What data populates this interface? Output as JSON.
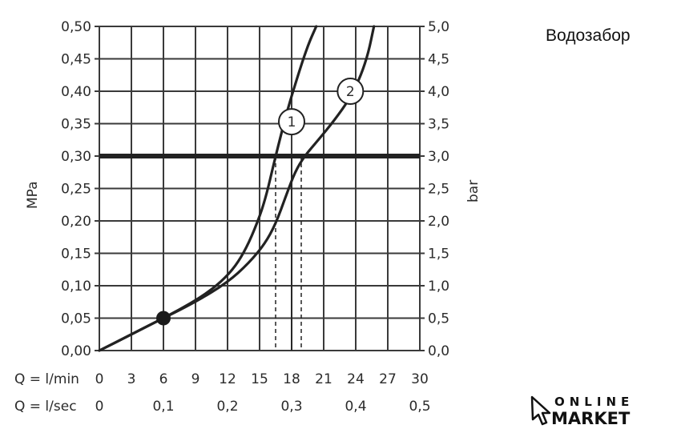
{
  "side_label": "Водозабор",
  "logo": {
    "line1": "ONLINE",
    "line2": "MARKET"
  },
  "chart_data": {
    "type": "line",
    "xlabel_row1": "Q = l/min",
    "xlabel_row2": "Q = l/sec",
    "ylabel_left": "MPa",
    "ylabel_right": "bar",
    "xlim": [
      0,
      30
    ],
    "ylim": [
      0,
      0.5
    ],
    "grid": true,
    "x_ticks": [
      "0",
      "3",
      "6",
      "9",
      "12",
      "15",
      "18",
      "21",
      "24",
      "27",
      "30"
    ],
    "x_ticks_sec": [
      "0",
      "0,1",
      "0,2",
      "0,3",
      "0,4",
      "0,5"
    ],
    "y_ticks_left": [
      "0,00",
      "0,05",
      "0,10",
      "0,15",
      "0,20",
      "0,25",
      "0,30",
      "0,35",
      "0,40",
      "0,45",
      "0,50"
    ],
    "y_ticks_right": [
      "0,0",
      "0,5",
      "1,0",
      "1,5",
      "2,0",
      "2,5",
      "3,0",
      "3,5",
      "4,0",
      "4,5",
      "5,0"
    ],
    "reference_line_y": 0.3,
    "reference_point": {
      "x": 6,
      "y": 0.05
    },
    "drop_lines": [
      {
        "series": "1",
        "x": 16.5
      },
      {
        "series": "2",
        "x": 18.9
      }
    ],
    "middle_vline_x": 18,
    "series": [
      {
        "name": "1",
        "label_at": {
          "x": 18,
          "y": 0.353
        },
        "points": [
          [
            0,
            0
          ],
          [
            3,
            0.025
          ],
          [
            6,
            0.05
          ],
          [
            9,
            0.077
          ],
          [
            11,
            0.1
          ],
          [
            12.5,
            0.125
          ],
          [
            13.5,
            0.15
          ],
          [
            14.5,
            0.185
          ],
          [
            15.5,
            0.23
          ],
          [
            16.5,
            0.3
          ],
          [
            17.5,
            0.365
          ],
          [
            18.5,
            0.42
          ],
          [
            19.5,
            0.47
          ],
          [
            20.3,
            0.5
          ]
        ]
      },
      {
        "name": "2",
        "label_at": {
          "x": 23.5,
          "y": 0.4
        },
        "points": [
          [
            0,
            0
          ],
          [
            3,
            0.025
          ],
          [
            6,
            0.05
          ],
          [
            9,
            0.075
          ],
          [
            12,
            0.105
          ],
          [
            14,
            0.135
          ],
          [
            15.5,
            0.165
          ],
          [
            16.5,
            0.195
          ],
          [
            17.5,
            0.24
          ],
          [
            18.3,
            0.275
          ],
          [
            19.2,
            0.3
          ],
          [
            20.5,
            0.325
          ],
          [
            22,
            0.355
          ],
          [
            23.5,
            0.39
          ],
          [
            24.5,
            0.425
          ],
          [
            25.2,
            0.46
          ],
          [
            25.7,
            0.5
          ]
        ]
      }
    ]
  }
}
